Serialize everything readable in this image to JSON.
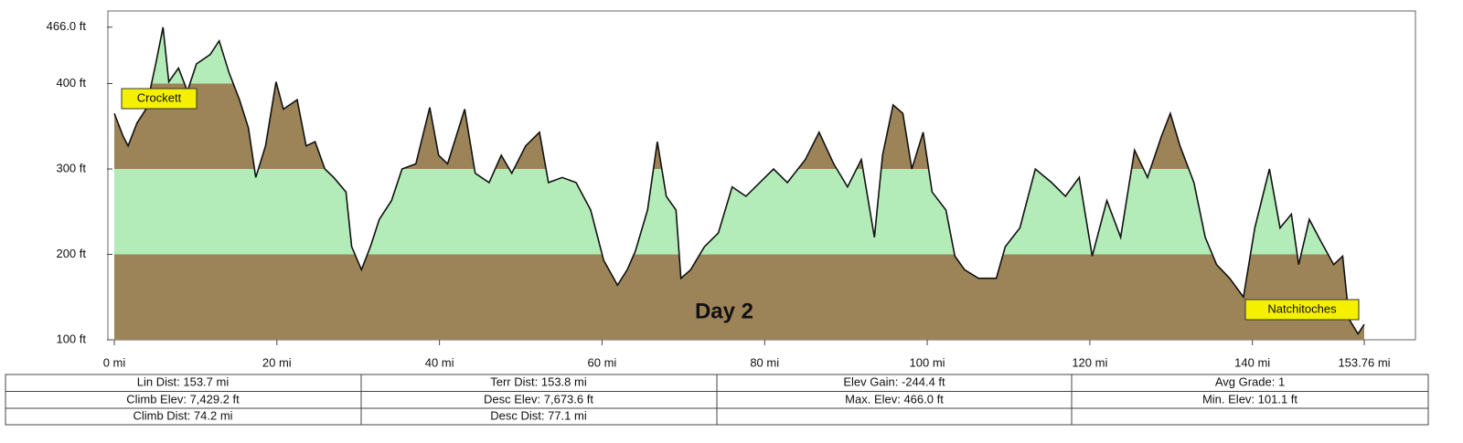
{
  "chart_data": {
    "type": "area",
    "x": [
      0,
      1.1,
      1.7,
      2.8,
      3.9,
      5.1,
      6.0,
      6.7,
      7.9,
      9.0,
      10.1,
      11.8,
      12.9,
      14.1,
      15.4,
      16.5,
      17.4,
      18.6,
      19.9,
      20.8,
      22.5,
      23.6,
      24.7,
      25.9,
      27.0,
      28.5,
      29.2,
      30.4,
      31.5,
      32.6,
      34.1,
      35.4,
      37.1,
      38.8,
      39.9,
      41.0,
      43.1,
      44.4,
      46.1,
      47.6,
      48.9,
      50.6,
      52.3,
      53.4,
      55.1,
      56.8,
      58.6,
      60.2,
      61.9,
      63.1,
      64.1,
      65.6,
      66.8,
      67.9,
      69.1,
      69.7,
      70.9,
      72.6,
      74.3,
      76.0,
      77.7,
      79.4,
      81.1,
      82.8,
      85.0,
      86.7,
      88.5,
      90.2,
      91.9,
      93.5,
      94.5,
      95.8,
      97.0,
      98.1,
      99.5,
      100.6,
      102.3,
      103.4,
      104.6,
      106.3,
      108.5,
      109.6,
      111.4,
      113.3,
      115.3,
      117.0,
      118.7,
      120.3,
      122.1,
      123.8,
      125.5,
      127.1,
      128.8,
      129.9,
      131.1,
      132.8,
      134.2,
      135.6,
      137.2,
      138.9,
      140.3,
      142.1,
      143.4,
      144.8,
      145.7,
      147.0,
      148.5,
      150.0,
      151.1,
      151.9,
      153.0,
      153.76
    ],
    "values": [
      365,
      338,
      327,
      354,
      370,
      423,
      466,
      402,
      418,
      391,
      423,
      434,
      450,
      413,
      381,
      348,
      290,
      327,
      402,
      370,
      381,
      327,
      332,
      300,
      290,
      273,
      209,
      182,
      209,
      241,
      263,
      300,
      306,
      372,
      316,
      306,
      370,
      295,
      284,
      316,
      295,
      327,
      343,
      284,
      290,
      284,
      252,
      193,
      164,
      182,
      204,
      252,
      332,
      268,
      252,
      172,
      182,
      209,
      225,
      279,
      268,
      284,
      300,
      284,
      311,
      343,
      306,
      279,
      311,
      220,
      316,
      375,
      365,
      300,
      343,
      273,
      252,
      198,
      182,
      172,
      172,
      209,
      231,
      300,
      284,
      268,
      290,
      198,
      263,
      220,
      322,
      290,
      338,
      365,
      327,
      284,
      220,
      188,
      172,
      150,
      231,
      300,
      231,
      247,
      188,
      241,
      214,
      188,
      198,
      124,
      107,
      118
    ],
    "xlim": [
      0,
      153.76
    ],
    "ylim": [
      100,
      485
    ],
    "xticks": [
      {
        "value": 0,
        "label": "0 mi"
      },
      {
        "value": 20,
        "label": "20 mi"
      },
      {
        "value": 40,
        "label": "40 mi"
      },
      {
        "value": 60,
        "label": "60 mi"
      },
      {
        "value": 80,
        "label": "80 mi"
      },
      {
        "value": 100,
        "label": "100 mi"
      },
      {
        "value": 120,
        "label": "120 mi"
      },
      {
        "value": 140,
        "label": "140 mi"
      },
      {
        "value": 153.76,
        "label": "153.76 mi"
      }
    ],
    "yticks": [
      {
        "value": 100,
        "label": "100 ft"
      },
      {
        "value": 200,
        "label": "200 ft"
      },
      {
        "value": 300,
        "label": "300 ft"
      },
      {
        "value": 400,
        "label": "400 ft"
      },
      {
        "value": 466,
        "label": "466.0 ft"
      }
    ],
    "line_color": "#111111",
    "band_colors": [
      "#9c8458",
      "#b3ecb8"
    ],
    "annotations": [
      "Crockett",
      "Natchitoches",
      "Day 2"
    ]
  },
  "stats": {
    "rows": [
      [
        "Lin Dist: 153.7 mi",
        "Terr Dist: 153.8 mi",
        "Elev Gain: -244.4 ft",
        "Avg Grade: 1"
      ],
      [
        "Climb Elev: 7,429.2 ft",
        "Desc Elev: 7,673.6 ft",
        "Max. Elev: 466.0 ft",
        "Min. Elev: 101.1 ft"
      ],
      [
        "Climb Dist: 74.2 mi",
        "Desc Dist: 77.1 mi"
      ]
    ]
  }
}
